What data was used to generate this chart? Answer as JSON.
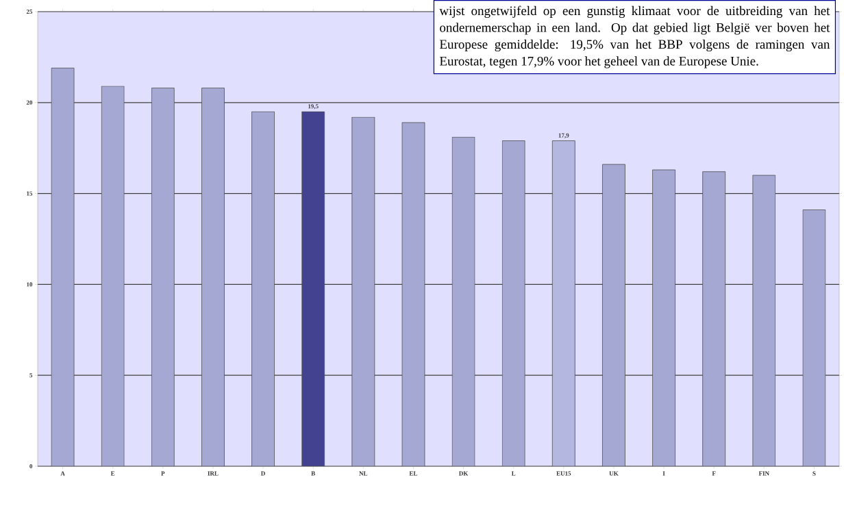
{
  "chart_data": {
    "type": "bar",
    "categories": [
      "A",
      "E",
      "P",
      "IRL",
      "D",
      "B",
      "NL",
      "EL",
      "DK",
      "L",
      "EU15",
      "UK",
      "I",
      "F",
      "FIN",
      "S"
    ],
    "values": [
      21.9,
      20.9,
      20.8,
      20.8,
      19.5,
      19.5,
      19.2,
      18.9,
      18.1,
      17.9,
      17.9,
      16.6,
      16.3,
      16.2,
      16.0,
      14.1
    ],
    "colors": [
      "#a5a8d3",
      "#a5a8d3",
      "#a5a8d3",
      "#a5a8d3",
      "#a5a8d3",
      "#434290",
      "#a5a8d3",
      "#a5a8d3",
      "#a5a8d3",
      "#a5a8d3",
      "#b4b7e0",
      "#a5a8d3",
      "#a5a8d3",
      "#a5a8d3",
      "#a5a8d3",
      "#a5a8d3"
    ],
    "value_labels": [
      null,
      null,
      null,
      null,
      null,
      "19,5",
      null,
      null,
      null,
      null,
      "17,9",
      null,
      null,
      null,
      null,
      null
    ],
    "ylim": [
      0,
      25
    ],
    "yticks": [
      0,
      5,
      10,
      15,
      20,
      25
    ],
    "grid": "y",
    "annotations": [
      "wijst ongetwijfeld op een gunstig klimaat voor de uitbreiding van het ondernemerschap in een land. Op dat gebied ligt België ver boven het Europese gemiddelde: 19,5% van het BBP volgens de ramingen van Eurostat, tegen 17,9% voor het geheel van de Europese Unie."
    ]
  }
}
